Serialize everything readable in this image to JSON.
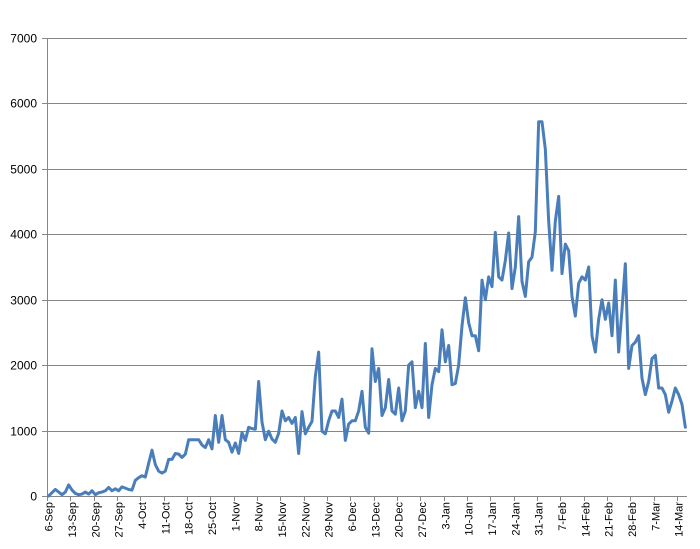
{
  "chart_data": {
    "type": "line",
    "title": "",
    "xlabel": "",
    "ylabel": "",
    "ylim": [
      0,
      7000
    ],
    "y_ticks": [
      0,
      1000,
      2000,
      3000,
      4000,
      5000,
      6000,
      7000
    ],
    "grid": "horizontal",
    "legend": "none",
    "x_range": [
      "2020-09-06",
      "2021-03-16"
    ],
    "x_tick_labels": [
      "6-Sep",
      "13-Sep",
      "20-Sep",
      "27-Sep",
      "4-Oct",
      "11-Oct",
      "18-Oct",
      "25-Oct",
      "1-Nov",
      "8-Nov",
      "15-Nov",
      "22-Nov",
      "29-Nov",
      "6-Dec",
      "13-Dec",
      "20-Dec",
      "27-Dec",
      "3-Jan",
      "10-Jan",
      "17-Jan",
      "24-Jan",
      "31-Jan",
      "7-Feb",
      "14-Feb",
      "21-Feb",
      "28-Feb",
      "7-Mar",
      "14-Mar"
    ],
    "series": [
      {
        "color": "#4a7ebb",
        "points": [
          [
            "2020-09-06",
            0
          ],
          [
            "2020-09-07",
            50
          ],
          [
            "2020-09-08",
            100
          ],
          [
            "2020-09-09",
            60
          ],
          [
            "2020-09-10",
            20
          ],
          [
            "2020-09-11",
            60
          ],
          [
            "2020-09-12",
            170
          ],
          [
            "2020-09-13",
            90
          ],
          [
            "2020-09-14",
            40
          ],
          [
            "2020-09-15",
            20
          ],
          [
            "2020-09-16",
            30
          ],
          [
            "2020-09-17",
            60
          ],
          [
            "2020-09-18",
            30
          ],
          [
            "2020-09-19",
            80
          ],
          [
            "2020-09-20",
            20
          ],
          [
            "2020-09-21",
            50
          ],
          [
            "2020-09-22",
            60
          ],
          [
            "2020-09-23",
            80
          ],
          [
            "2020-09-24",
            130
          ],
          [
            "2020-09-25",
            80
          ],
          [
            "2020-09-26",
            110
          ],
          [
            "2020-09-27",
            80
          ],
          [
            "2020-09-28",
            140
          ],
          [
            "2020-09-29",
            120
          ],
          [
            "2020-09-30",
            100
          ],
          [
            "2020-10-01",
            90
          ],
          [
            "2020-10-02",
            240
          ],
          [
            "2020-10-03",
            280
          ],
          [
            "2020-10-04",
            310
          ],
          [
            "2020-10-05",
            290
          ],
          [
            "2020-10-06",
            500
          ],
          [
            "2020-10-07",
            700
          ],
          [
            "2020-10-08",
            480
          ],
          [
            "2020-10-09",
            380
          ],
          [
            "2020-10-10",
            350
          ],
          [
            "2020-10-11",
            380
          ],
          [
            "2020-10-12",
            560
          ],
          [
            "2020-10-13",
            560
          ],
          [
            "2020-10-14",
            650
          ],
          [
            "2020-10-15",
            640
          ],
          [
            "2020-10-16",
            590
          ],
          [
            "2020-10-17",
            640
          ],
          [
            "2020-10-18",
            860
          ],
          [
            "2020-10-19",
            860
          ],
          [
            "2020-10-20",
            860
          ],
          [
            "2020-10-21",
            860
          ],
          [
            "2020-10-22",
            780
          ],
          [
            "2020-10-23",
            740
          ],
          [
            "2020-10-24",
            860
          ],
          [
            "2020-10-25",
            720
          ],
          [
            "2020-10-26",
            1230
          ],
          [
            "2020-10-27",
            820
          ],
          [
            "2020-10-28",
            1230
          ],
          [
            "2020-10-29",
            860
          ],
          [
            "2020-10-30",
            820
          ],
          [
            "2020-10-31",
            670
          ],
          [
            "2020-11-01",
            810
          ],
          [
            "2020-11-02",
            650
          ],
          [
            "2020-11-03",
            970
          ],
          [
            "2020-11-04",
            850
          ],
          [
            "2020-11-05",
            1050
          ],
          [
            "2020-11-06",
            1030
          ],
          [
            "2020-11-07",
            1020
          ],
          [
            "2020-11-08",
            1750
          ],
          [
            "2020-11-09",
            1130
          ],
          [
            "2020-11-10",
            860
          ],
          [
            "2020-11-11",
            990
          ],
          [
            "2020-11-12",
            870
          ],
          [
            "2020-11-13",
            820
          ],
          [
            "2020-11-14",
            960
          ],
          [
            "2020-11-15",
            1300
          ],
          [
            "2020-11-16",
            1150
          ],
          [
            "2020-11-17",
            1200
          ],
          [
            "2020-11-18",
            1110
          ],
          [
            "2020-11-19",
            1200
          ],
          [
            "2020-11-20",
            650
          ],
          [
            "2020-11-21",
            1290
          ],
          [
            "2020-11-22",
            950
          ],
          [
            "2020-11-23",
            1050
          ],
          [
            "2020-11-24",
            1140
          ],
          [
            "2020-11-25",
            1830
          ],
          [
            "2020-11-26",
            2200
          ],
          [
            "2020-11-27",
            990
          ],
          [
            "2020-11-28",
            950
          ],
          [
            "2020-11-29",
            1150
          ],
          [
            "2020-11-30",
            1300
          ],
          [
            "2020-12-01",
            1300
          ],
          [
            "2020-12-02",
            1200
          ],
          [
            "2020-12-03",
            1480
          ],
          [
            "2020-12-04",
            850
          ],
          [
            "2020-12-05",
            1100
          ],
          [
            "2020-12-06",
            1150
          ],
          [
            "2020-12-07",
            1150
          ],
          [
            "2020-12-08",
            1300
          ],
          [
            "2020-12-09",
            1600
          ],
          [
            "2020-12-10",
            1050
          ],
          [
            "2020-12-11",
            960
          ],
          [
            "2020-12-12",
            2250
          ],
          [
            "2020-12-13",
            1750
          ],
          [
            "2020-12-14",
            1950
          ],
          [
            "2020-12-15",
            1230
          ],
          [
            "2020-12-16",
            1350
          ],
          [
            "2020-12-17",
            1780
          ],
          [
            "2020-12-18",
            1300
          ],
          [
            "2020-12-19",
            1250
          ],
          [
            "2020-12-20",
            1650
          ],
          [
            "2020-12-21",
            1150
          ],
          [
            "2020-12-22",
            1300
          ],
          [
            "2020-12-23",
            2000
          ],
          [
            "2020-12-24",
            2050
          ],
          [
            "2020-12-25",
            1350
          ],
          [
            "2020-12-26",
            1600
          ],
          [
            "2020-12-27",
            1350
          ],
          [
            "2020-12-28",
            2330
          ],
          [
            "2020-12-29",
            1200
          ],
          [
            "2020-12-30",
            1700
          ],
          [
            "2020-12-31",
            1950
          ],
          [
            "2021-01-01",
            1900
          ],
          [
            "2021-01-02",
            2540
          ],
          [
            "2021-01-03",
            2050
          ],
          [
            "2021-01-04",
            2300
          ],
          [
            "2021-01-05",
            1700
          ],
          [
            "2021-01-06",
            1720
          ],
          [
            "2021-01-07",
            2000
          ],
          [
            "2021-01-08",
            2600
          ],
          [
            "2021-01-09",
            3030
          ],
          [
            "2021-01-10",
            2650
          ],
          [
            "2021-01-11",
            2450
          ],
          [
            "2021-01-12",
            2450
          ],
          [
            "2021-01-13",
            2220
          ],
          [
            "2021-01-14",
            3300
          ],
          [
            "2021-01-15",
            3000
          ],
          [
            "2021-01-16",
            3350
          ],
          [
            "2021-01-17",
            3200
          ],
          [
            "2021-01-18",
            4030
          ],
          [
            "2021-01-19",
            3350
          ],
          [
            "2021-01-20",
            3300
          ],
          [
            "2021-01-21",
            3600
          ],
          [
            "2021-01-22",
            4020
          ],
          [
            "2021-01-23",
            3170
          ],
          [
            "2021-01-24",
            3500
          ],
          [
            "2021-01-25",
            4270
          ],
          [
            "2021-01-26",
            3280
          ],
          [
            "2021-01-27",
            3050
          ],
          [
            "2021-01-28",
            3580
          ],
          [
            "2021-01-29",
            3650
          ],
          [
            "2021-01-30",
            4040
          ],
          [
            "2021-01-31",
            5720
          ],
          [
            "2021-02-01",
            5720
          ],
          [
            "2021-02-02",
            5300
          ],
          [
            "2021-02-03",
            4200
          ],
          [
            "2021-02-04",
            3450
          ],
          [
            "2021-02-05",
            4200
          ],
          [
            "2021-02-06",
            4580
          ],
          [
            "2021-02-07",
            3400
          ],
          [
            "2021-02-08",
            3850
          ],
          [
            "2021-02-09",
            3750
          ],
          [
            "2021-02-10",
            3050
          ],
          [
            "2021-02-11",
            2750
          ],
          [
            "2021-02-12",
            3250
          ],
          [
            "2021-02-13",
            3350
          ],
          [
            "2021-02-14",
            3300
          ],
          [
            "2021-02-15",
            3500
          ],
          [
            "2021-02-16",
            2450
          ],
          [
            "2021-02-17",
            2200
          ],
          [
            "2021-02-18",
            2700
          ],
          [
            "2021-02-19",
            3000
          ],
          [
            "2021-02-20",
            2700
          ],
          [
            "2021-02-21",
            2950
          ],
          [
            "2021-02-22",
            2450
          ],
          [
            "2021-02-23",
            3300
          ],
          [
            "2021-02-24",
            2200
          ],
          [
            "2021-02-25",
            2850
          ],
          [
            "2021-02-26",
            3550
          ],
          [
            "2021-02-27",
            1950
          ],
          [
            "2021-02-28",
            2300
          ],
          [
            "2021-03-01",
            2350
          ],
          [
            "2021-03-02",
            2450
          ],
          [
            "2021-03-03",
            1800
          ],
          [
            "2021-03-04",
            1550
          ],
          [
            "2021-03-05",
            1750
          ],
          [
            "2021-03-06",
            2100
          ],
          [
            "2021-03-07",
            2150
          ],
          [
            "2021-03-08",
            1650
          ],
          [
            "2021-03-09",
            1650
          ],
          [
            "2021-03-10",
            1550
          ],
          [
            "2021-03-11",
            1280
          ],
          [
            "2021-03-12",
            1450
          ],
          [
            "2021-03-13",
            1650
          ],
          [
            "2021-03-14",
            1550
          ],
          [
            "2021-03-15",
            1400
          ],
          [
            "2021-03-16",
            1050
          ]
        ]
      }
    ]
  }
}
